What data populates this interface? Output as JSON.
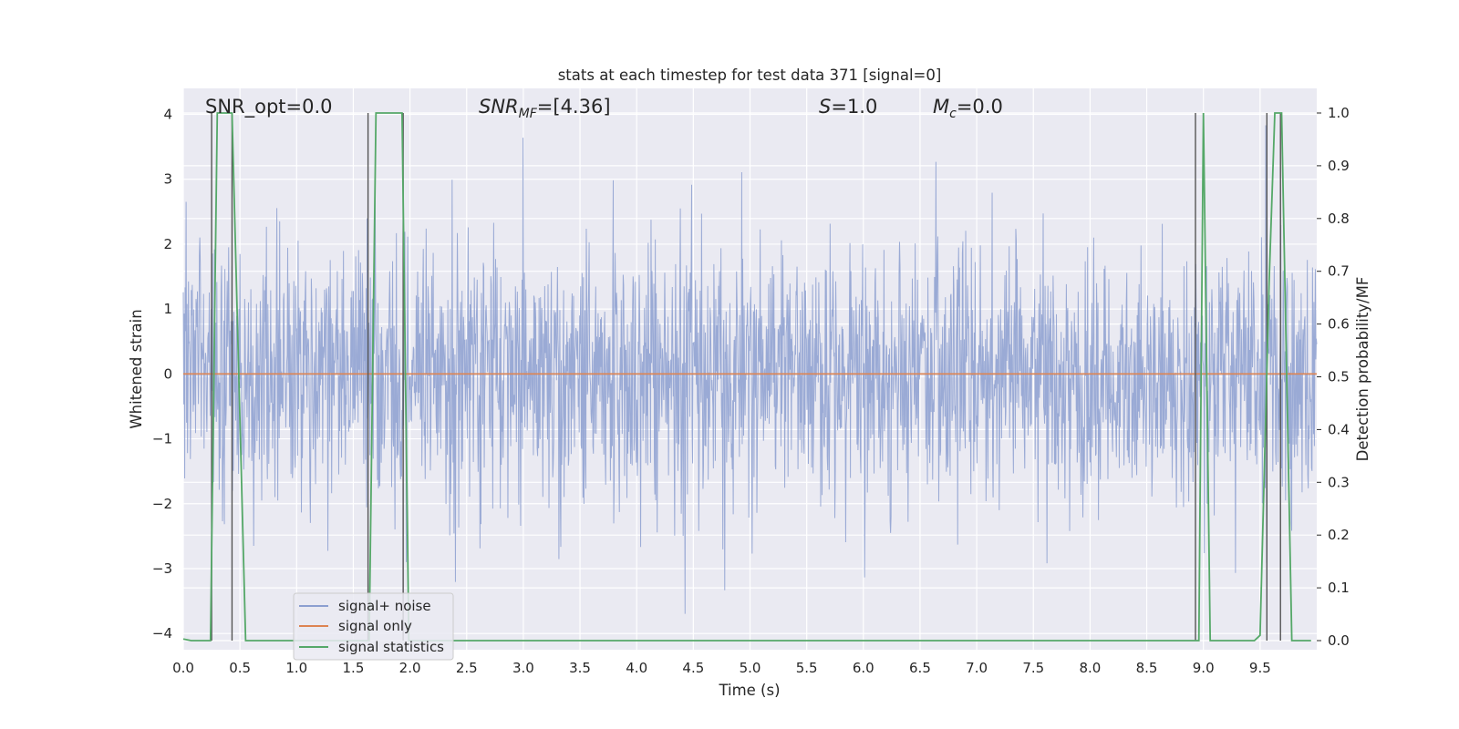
{
  "chart_data": {
    "type": "line",
    "title": "stats at each timestep for test data 371 [signal=0]",
    "xlabel": "Time (s)",
    "ylabel_left": "Whitened strain",
    "ylabel_right": "Detection probability/MF",
    "xlim": [
      0,
      10
    ],
    "ylim_left": [
      -4.25,
      4.4
    ],
    "ylim_right": [
      0,
      1
    ],
    "x_ticks": [
      "0.0",
      "0.5",
      "1.0",
      "1.5",
      "2.0",
      "2.5",
      "3.0",
      "3.5",
      "4.0",
      "4.5",
      "5.0",
      "5.5",
      "6.0",
      "6.5",
      "7.0",
      "7.5",
      "8.0",
      "8.5",
      "9.0",
      "9.5"
    ],
    "y_ticks_left": [
      "4",
      "3",
      "2",
      "1",
      "0",
      "−1",
      "−2",
      "−3",
      "−4"
    ],
    "y_ticks_right": [
      "1.0",
      "0.9",
      "0.8",
      "0.7",
      "0.6",
      "0.5",
      "0.4",
      "0.3",
      "0.2",
      "0.1",
      "0.0"
    ],
    "grid": true,
    "annotations": {
      "snr_opt": "SNR_opt=0.0",
      "snr_mf_prefix": "SNR",
      "snr_mf_sub": "MF",
      "snr_mf_value": "=[4.36]",
      "s_label": "S",
      "s_value": "=1.0",
      "mc_label": "M",
      "mc_sub": "c",
      "mc_value": "=0.0"
    },
    "legend": {
      "placement": "lower-left",
      "entries": [
        {
          "name": "signal+ noise",
          "color": "#8c9fd0"
        },
        {
          "name": "signal only",
          "color": "#dd8452"
        },
        {
          "name": "signal statistics",
          "color": "#55a868"
        }
      ]
    },
    "series": [
      {
        "name": "signal+ noise",
        "color": "#8c9fd0",
        "description_type": "dense noise",
        "amplitude_std": 1.0
      },
      {
        "name": "signal only",
        "color": "#dd8452",
        "x": [
          0,
          10
        ],
        "y": [
          0,
          0
        ]
      },
      {
        "name": "signal statistics",
        "color": "#55a868",
        "x": [
          0.0,
          0.07,
          0.24,
          0.3,
          0.43,
          0.55,
          1.55,
          1.64,
          1.7,
          1.93,
          1.99,
          8.93,
          8.96,
          9.0,
          9.06,
          9.45,
          9.5,
          9.58,
          9.63,
          9.69,
          9.78,
          9.95
        ],
        "y": [
          0.003,
          0.0,
          0.0,
          1.0,
          1.0,
          0.0,
          0.0,
          0.0,
          1.0,
          1.0,
          0.0,
          0.0,
          0.0,
          1.0,
          0.0,
          0.0,
          0.01,
          0.68,
          1.0,
          1.0,
          0.0,
          0.0
        ]
      }
    ],
    "vertical_lines": [
      0.25,
      0.43,
      1.63,
      1.94,
      8.93,
      9.56,
      9.68
    ]
  }
}
